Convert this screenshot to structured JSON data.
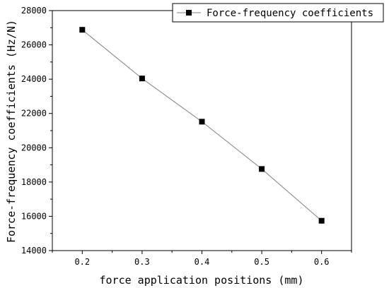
{
  "chart_data": {
    "type": "line",
    "x": [
      0.2,
      0.3,
      0.4,
      0.5,
      0.6
    ],
    "series": [
      {
        "name": "Force-frequency coefficients",
        "values": [
          26880,
          24040,
          21520,
          18760,
          15740
        ],
        "color": "#000000",
        "marker": "square"
      }
    ],
    "xlabel": "force application positions (mm)",
    "ylabel": "Force-frequency coefficients (Hz/N)",
    "xlim": [
      0.15,
      0.65
    ],
    "ylim": [
      14000,
      28000
    ],
    "x_ticks": [
      0.2,
      0.3,
      0.4,
      0.5,
      0.6
    ],
    "x_tick_labels": [
      "0.2",
      "0.3",
      "0.4",
      "0.5",
      "0.6"
    ],
    "y_ticks": [
      14000,
      16000,
      18000,
      20000,
      22000,
      24000,
      26000,
      28000
    ],
    "y_tick_labels": [
      "14000",
      "16000",
      "18000",
      "20000",
      "22000",
      "24000",
      "26000",
      "28000"
    ],
    "grid": false,
    "legend_position": "top-right",
    "line_color": "#808080"
  }
}
